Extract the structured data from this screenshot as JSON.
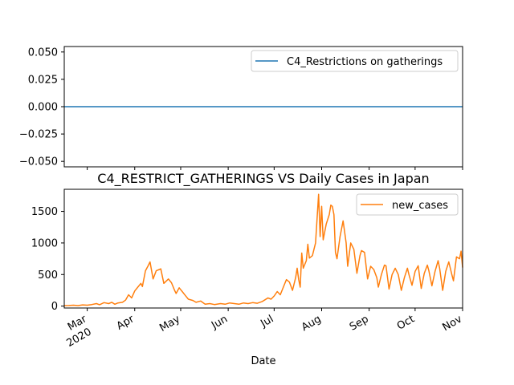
{
  "chart_data": [
    {
      "type": "line",
      "title": "",
      "xlabel": "",
      "ylabel": "",
      "ylim": [
        -0.055,
        0.055
      ],
      "yticks": [
        -0.05,
        -0.025,
        0.0,
        0.025,
        0.05
      ],
      "ytick_labels": [
        "−0.050",
        "−0.025",
        "0.000",
        "0.025",
        "0.050"
      ],
      "legend_position": "upper-right",
      "grid": false,
      "series": [
        {
          "name": "C4_Restrictions on gatherings",
          "color": "#1f77b4",
          "x": [
            "2020-02-15",
            "2020-11-01"
          ],
          "y": [
            0,
            0
          ]
        }
      ]
    },
    {
      "type": "line",
      "title": "C4_RESTRICT_GATHERINGS VS Daily Cases in Japan",
      "xlabel": "Date",
      "ylabel": "",
      "xlim": [
        "2020-02-15",
        "2020-11-01"
      ],
      "ylim": [
        -30,
        1850
      ],
      "yticks": [
        0,
        500,
        1000,
        1500
      ],
      "ytick_labels": [
        "0",
        "500",
        "1000",
        "1500"
      ],
      "xticks": [
        "2020-03-01",
        "2020-04-01",
        "2020-05-01",
        "2020-06-01",
        "2020-07-01",
        "2020-08-01",
        "2020-09-01",
        "2020-10-01",
        "2020-11-01"
      ],
      "xtick_labels": [
        "Mar",
        "Apr",
        "May",
        "Jun",
        "Jul",
        "Aug",
        "Sep",
        "Oct",
        "Nov"
      ],
      "xtick_year_label": "2020",
      "legend_position": "upper-right",
      "grid": false,
      "series": [
        {
          "name": "new_cases",
          "color": "#ff7f0e",
          "points": [
            [
              "2020-02-15",
              8
            ],
            [
              "2020-02-18",
              10
            ],
            [
              "2020-02-21",
              14
            ],
            [
              "2020-02-24",
              8
            ],
            [
              "2020-02-27",
              20
            ],
            [
              "2020-03-01",
              14
            ],
            [
              "2020-03-04",
              25
            ],
            [
              "2020-03-07",
              40
            ],
            [
              "2020-03-09",
              22
            ],
            [
              "2020-03-12",
              55
            ],
            [
              "2020-03-15",
              40
            ],
            [
              "2020-03-17",
              60
            ],
            [
              "2020-03-19",
              30
            ],
            [
              "2020-03-21",
              50
            ],
            [
              "2020-03-24",
              60
            ],
            [
              "2020-03-26",
              95
            ],
            [
              "2020-03-28",
              180
            ],
            [
              "2020-03-30",
              130
            ],
            [
              "2020-04-01",
              240
            ],
            [
              "2020-04-03",
              300
            ],
            [
              "2020-04-05",
              360
            ],
            [
              "2020-04-06",
              310
            ],
            [
              "2020-04-08",
              560
            ],
            [
              "2020-04-10",
              650
            ],
            [
              "2020-04-11",
              700
            ],
            [
              "2020-04-13",
              430
            ],
            [
              "2020-04-15",
              560
            ],
            [
              "2020-04-17",
              580
            ],
            [
              "2020-04-18",
              590
            ],
            [
              "2020-04-20",
              360
            ],
            [
              "2020-04-23",
              430
            ],
            [
              "2020-04-25",
              370
            ],
            [
              "2020-04-27",
              250
            ],
            [
              "2020-04-28",
              200
            ],
            [
              "2020-04-30",
              290
            ],
            [
              "2020-05-02",
              230
            ],
            [
              "2020-05-04",
              170
            ],
            [
              "2020-05-06",
              110
            ],
            [
              "2020-05-09",
              90
            ],
            [
              "2020-05-11",
              60
            ],
            [
              "2020-05-14",
              80
            ],
            [
              "2020-05-17",
              30
            ],
            [
              "2020-05-20",
              40
            ],
            [
              "2020-05-23",
              25
            ],
            [
              "2020-05-27",
              40
            ],
            [
              "2020-05-30",
              30
            ],
            [
              "2020-06-02",
              50
            ],
            [
              "2020-06-05",
              40
            ],
            [
              "2020-06-08",
              30
            ],
            [
              "2020-06-11",
              50
            ],
            [
              "2020-06-14",
              40
            ],
            [
              "2020-06-17",
              55
            ],
            [
              "2020-06-20",
              45
            ],
            [
              "2020-06-23",
              70
            ],
            [
              "2020-06-25",
              100
            ],
            [
              "2020-06-27",
              130
            ],
            [
              "2020-06-29",
              110
            ],
            [
              "2020-07-01",
              160
            ],
            [
              "2020-07-03",
              230
            ],
            [
              "2020-07-05",
              180
            ],
            [
              "2020-07-07",
              300
            ],
            [
              "2020-07-09",
              420
            ],
            [
              "2020-07-11",
              380
            ],
            [
              "2020-07-13",
              250
            ],
            [
              "2020-07-15",
              450
            ],
            [
              "2020-07-16",
              600
            ],
            [
              "2020-07-17",
              420
            ],
            [
              "2020-07-18",
              300
            ],
            [
              "2020-07-19",
              840
            ],
            [
              "2020-07-20",
              600
            ],
            [
              "2020-07-22",
              720
            ],
            [
              "2020-07-23",
              980
            ],
            [
              "2020-07-24",
              760
            ],
            [
              "2020-07-26",
              800
            ],
            [
              "2020-07-28",
              1000
            ],
            [
              "2020-07-30",
              1770
            ],
            [
              "2020-07-31",
              1100
            ],
            [
              "2020-08-01",
              1580
            ],
            [
              "2020-08-02",
              1050
            ],
            [
              "2020-08-04",
              1300
            ],
            [
              "2020-08-06",
              1450
            ],
            [
              "2020-08-07",
              1600
            ],
            [
              "2020-08-08",
              1580
            ],
            [
              "2020-08-09",
              1450
            ],
            [
              "2020-08-10",
              850
            ],
            [
              "2020-08-11",
              750
            ],
            [
              "2020-08-13",
              1100
            ],
            [
              "2020-08-15",
              1350
            ],
            [
              "2020-08-17",
              1000
            ],
            [
              "2020-08-18",
              630
            ],
            [
              "2020-08-20",
              1000
            ],
            [
              "2020-08-22",
              900
            ],
            [
              "2020-08-24",
              520
            ],
            [
              "2020-08-26",
              800
            ],
            [
              "2020-08-27",
              880
            ],
            [
              "2020-08-29",
              850
            ],
            [
              "2020-08-31",
              430
            ],
            [
              "2020-09-02",
              630
            ],
            [
              "2020-09-04",
              580
            ],
            [
              "2020-09-06",
              450
            ],
            [
              "2020-09-07",
              300
            ],
            [
              "2020-09-09",
              500
            ],
            [
              "2020-09-11",
              650
            ],
            [
              "2020-09-12",
              640
            ],
            [
              "2020-09-14",
              270
            ],
            [
              "2020-09-16",
              500
            ],
            [
              "2020-09-18",
              600
            ],
            [
              "2020-09-20",
              500
            ],
            [
              "2020-09-22",
              250
            ],
            [
              "2020-09-24",
              450
            ],
            [
              "2020-09-26",
              600
            ],
            [
              "2020-09-27",
              500
            ],
            [
              "2020-09-29",
              330
            ],
            [
              "2020-10-01",
              550
            ],
            [
              "2020-10-03",
              640
            ],
            [
              "2020-10-05",
              280
            ],
            [
              "2020-10-07",
              520
            ],
            [
              "2020-10-09",
              650
            ],
            [
              "2020-10-10",
              560
            ],
            [
              "2020-10-12",
              320
            ],
            [
              "2020-10-14",
              550
            ],
            [
              "2020-10-16",
              720
            ],
            [
              "2020-10-17",
              600
            ],
            [
              "2020-10-19",
              250
            ],
            [
              "2020-10-21",
              550
            ],
            [
              "2020-10-23",
              700
            ],
            [
              "2020-10-25",
              500
            ],
            [
              "2020-10-26",
              400
            ],
            [
              "2020-10-28",
              780
            ],
            [
              "2020-10-30",
              750
            ],
            [
              "2020-10-31",
              870
            ],
            [
              "2020-11-01",
              610
            ]
          ]
        }
      ]
    }
  ]
}
